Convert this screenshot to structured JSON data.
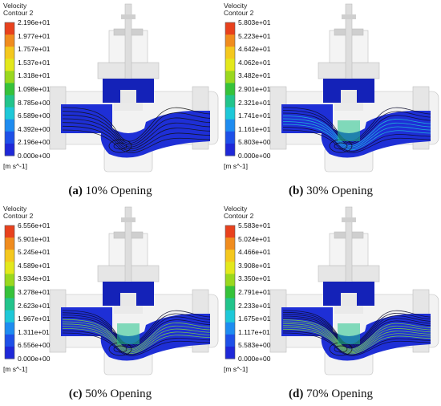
{
  "colorbar": {
    "title_line1": "Velocity",
    "title_line2": "Contour 2",
    "unit": "[m s^-1]",
    "colors": [
      "#e8411d",
      "#f08c1e",
      "#f4c81e",
      "#e3e81c",
      "#9ad81e",
      "#36c23a",
      "#22c48c",
      "#1ec8d8",
      "#1e8cf0",
      "#1e50e8",
      "#1e28d8"
    ]
  },
  "panels": [
    {
      "label": "(a)",
      "caption": "10% Opening",
      "opening_percent": 10,
      "ticks": [
        "2.196e+01",
        "1.977e+01",
        "1.757e+01",
        "1.537e+01",
        "1.318e+01",
        "1.098e+01",
        "8.785e+00",
        "6.589e+00",
        "4.392e+00",
        "2.196e+00",
        "0.000e+00"
      ]
    },
    {
      "label": "(b)",
      "caption": "30% Opening",
      "opening_percent": 30,
      "ticks": [
        "5.803e+01",
        "5.223e+01",
        "4.642e+01",
        "4.062e+01",
        "3.482e+01",
        "2.901e+01",
        "2.321e+01",
        "1.741e+01",
        "1.161e+01",
        "5.803e+00",
        "0.000e+00"
      ]
    },
    {
      "label": "(c)",
      "caption": "50% Opening",
      "opening_percent": 50,
      "ticks": [
        "6.556e+01",
        "5.901e+01",
        "5.245e+01",
        "4.589e+01",
        "3.934e+01",
        "3.278e+01",
        "2.623e+01",
        "1.967e+01",
        "1.311e+01",
        "6.556e+00",
        "0.000e+00"
      ]
    },
    {
      "label": "(d)",
      "caption": "70% Opening",
      "opening_percent": 70,
      "ticks": [
        "5.583e+01",
        "5.024e+01",
        "4.466e+01",
        "3.908e+01",
        "3.350e+01",
        "2.791e+01",
        "2.233e+01",
        "1.675e+01",
        "1.117e+01",
        "5.583e+00",
        "0.000e+00"
      ]
    }
  ]
}
